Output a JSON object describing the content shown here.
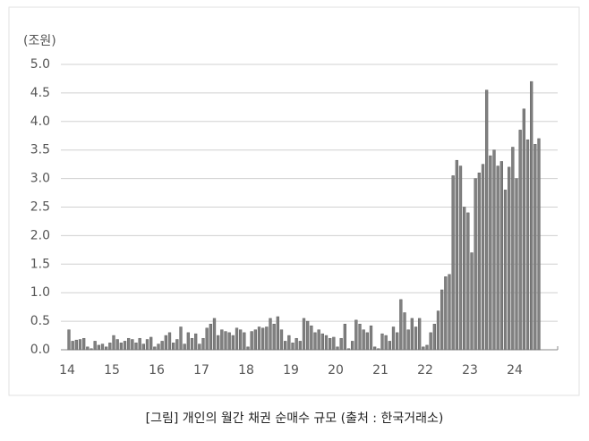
{
  "chart_data": {
    "type": "bar",
    "y_unit_label": "(조원)",
    "caption": "[그림] 개인의 월간 채권 순매수 규모 (출처 : 한국거래소)",
    "categories": [
      "14",
      null,
      null,
      null,
      null,
      null,
      null,
      null,
      null,
      null,
      null,
      null,
      "15",
      null,
      null,
      null,
      null,
      null,
      null,
      null,
      null,
      null,
      null,
      null,
      "16",
      null,
      null,
      null,
      null,
      null,
      null,
      null,
      null,
      null,
      null,
      null,
      "17",
      null,
      null,
      null,
      null,
      null,
      null,
      null,
      null,
      null,
      null,
      null,
      "18",
      null,
      null,
      null,
      null,
      null,
      null,
      null,
      null,
      null,
      null,
      null,
      "19",
      null,
      null,
      null,
      null,
      null,
      null,
      null,
      null,
      null,
      null,
      null,
      "20",
      null,
      null,
      null,
      null,
      null,
      null,
      null,
      null,
      null,
      null,
      null,
      "21",
      null,
      null,
      null,
      null,
      null,
      null,
      null,
      null,
      null,
      null,
      null,
      "22",
      null,
      null,
      null,
      null,
      null,
      null,
      null,
      null,
      null,
      null,
      null,
      "23",
      null,
      null,
      null,
      null,
      null,
      null,
      null,
      null,
      null,
      null,
      null,
      "24",
      null,
      null,
      null,
      null,
      null,
      null
    ],
    "values": [
      0.35,
      0.15,
      0.17,
      0.18,
      0.2,
      0.05,
      0.02,
      0.15,
      0.08,
      0.1,
      0.05,
      0.12,
      0.25,
      0.18,
      0.12,
      0.15,
      0.2,
      0.18,
      0.12,
      0.2,
      0.1,
      0.18,
      0.22,
      0.05,
      0.1,
      0.15,
      0.25,
      0.3,
      0.12,
      0.18,
      0.4,
      0.1,
      0.3,
      0.2,
      0.28,
      0.1,
      0.2,
      0.38,
      0.45,
      0.55,
      0.25,
      0.35,
      0.32,
      0.3,
      0.25,
      0.38,
      0.35,
      0.3,
      0.05,
      0.32,
      0.35,
      0.4,
      0.38,
      0.4,
      0.55,
      0.45,
      0.58,
      0.35,
      0.15,
      0.25,
      0.12,
      0.2,
      0.15,
      0.55,
      0.5,
      0.42,
      0.3,
      0.35,
      0.28,
      0.25,
      0.2,
      0.22,
      0.05,
      0.2,
      0.45,
      0.02,
      0.15,
      0.52,
      0.45,
      0.35,
      0.3,
      0.42,
      0.05,
      0.02,
      0.28,
      0.25,
      0.15,
      0.4,
      0.3,
      0.88,
      0.65,
      0.35,
      0.55,
      0.4,
      0.55,
      0.05,
      0.08,
      0.3,
      0.45,
      0.68,
      1.05,
      1.28,
      1.32,
      3.05,
      3.32,
      3.22,
      2.5,
      2.4,
      1.7,
      3.0,
      3.1,
      3.25,
      4.55,
      3.4,
      3.5,
      3.22,
      3.3,
      2.8,
      3.2,
      3.55,
      3.0,
      3.85,
      4.22,
      3.68,
      4.7,
      3.6,
      3.7
    ],
    "color": "#808080",
    "ylim": [
      0,
      5
    ],
    "yticks": [
      {
        "value": 0,
        "label": "0.0"
      },
      0.5,
      {
        "value": 1,
        "label": "1.0"
      },
      1.5,
      {
        "value": 2,
        "label": "2.0"
      },
      2.5,
      {
        "value": 3,
        "label": "3.0"
      },
      3.5,
      {
        "value": 4,
        "label": "4.0"
      },
      4.5,
      {
        "value": 5,
        "label": "5.0"
      }
    ],
    "grid": true
  }
}
